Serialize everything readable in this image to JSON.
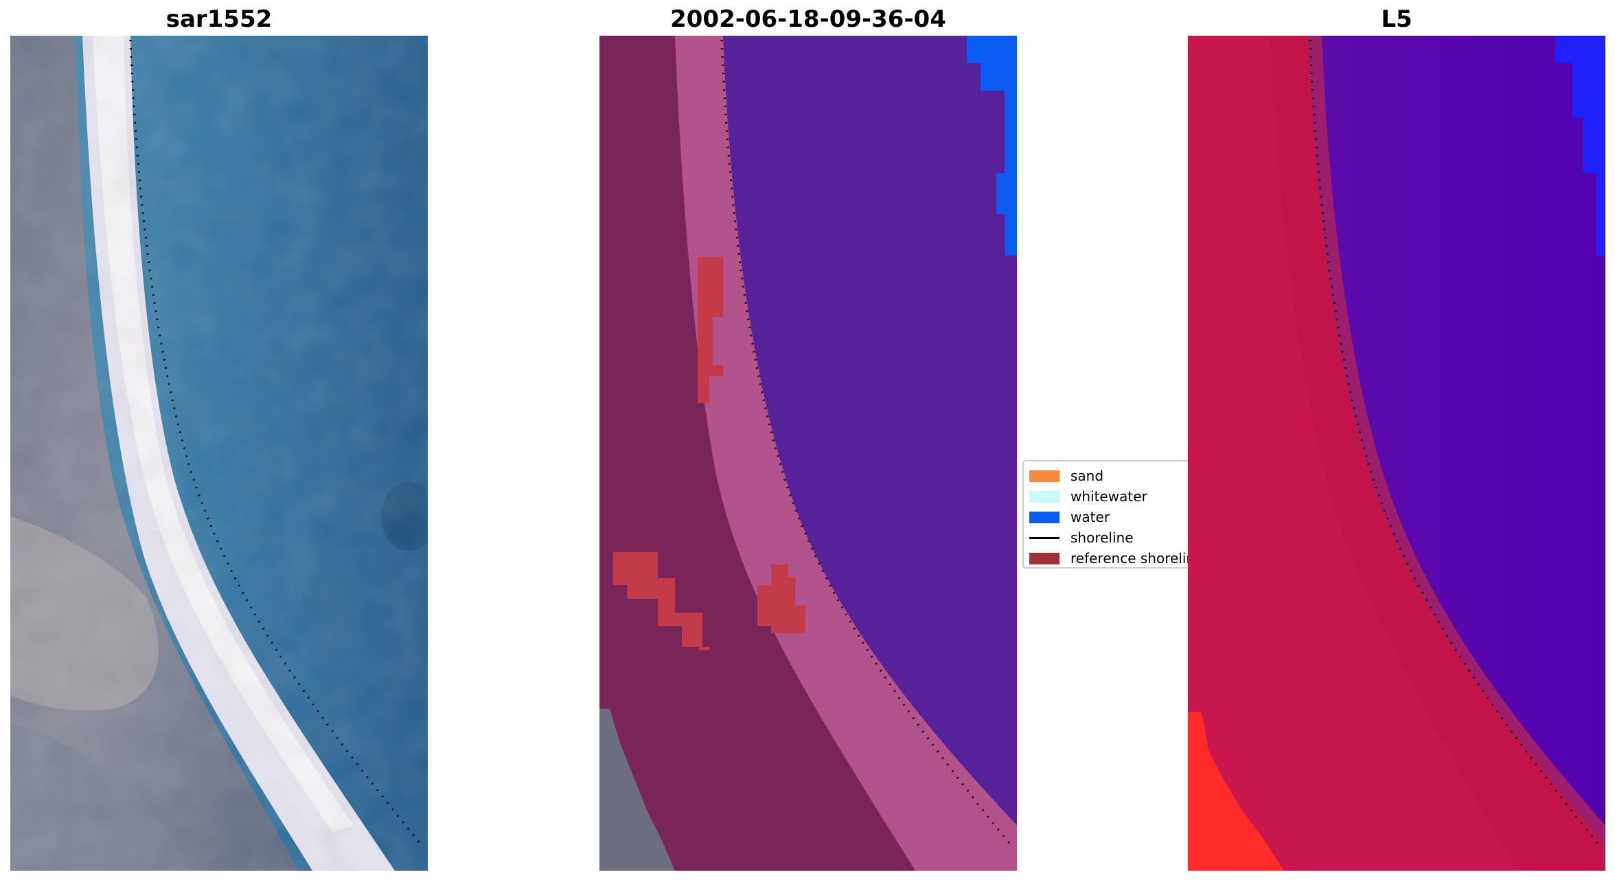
{
  "titles": {
    "panel1": "sar1552",
    "panel2": "2002-06-18-09-36-04",
    "panel3": "L5"
  },
  "legend": {
    "items": [
      {
        "label": "sand",
        "type": "patch",
        "color": "#f58a3c"
      },
      {
        "label": "whitewater",
        "type": "patch",
        "color": "#c8fbfb"
      },
      {
        "label": "water",
        "type": "patch",
        "color": "#0a5cf5"
      },
      {
        "label": "shoreline",
        "type": "line",
        "color": "#000000"
      },
      {
        "label": "reference shoreline",
        "type": "patch",
        "color": "#9e3236"
      }
    ]
  },
  "colors": {
    "rgb_water": "#2c6e9c",
    "rgb_beach": "#f2f0f5",
    "rgb_land": "#7c8496",
    "class_water": "#55229a",
    "class_land": "#7a2458",
    "class_beach": "#b3538c",
    "class_ref": "#c23b4a",
    "class_water_blue": "#0a5cf5",
    "ndwi_water": "#5a0aa8",
    "ndwi_land": "#c2154a",
    "ndwi_red": "#ff2a2a",
    "ndwi_blue": "#2020ff"
  }
}
